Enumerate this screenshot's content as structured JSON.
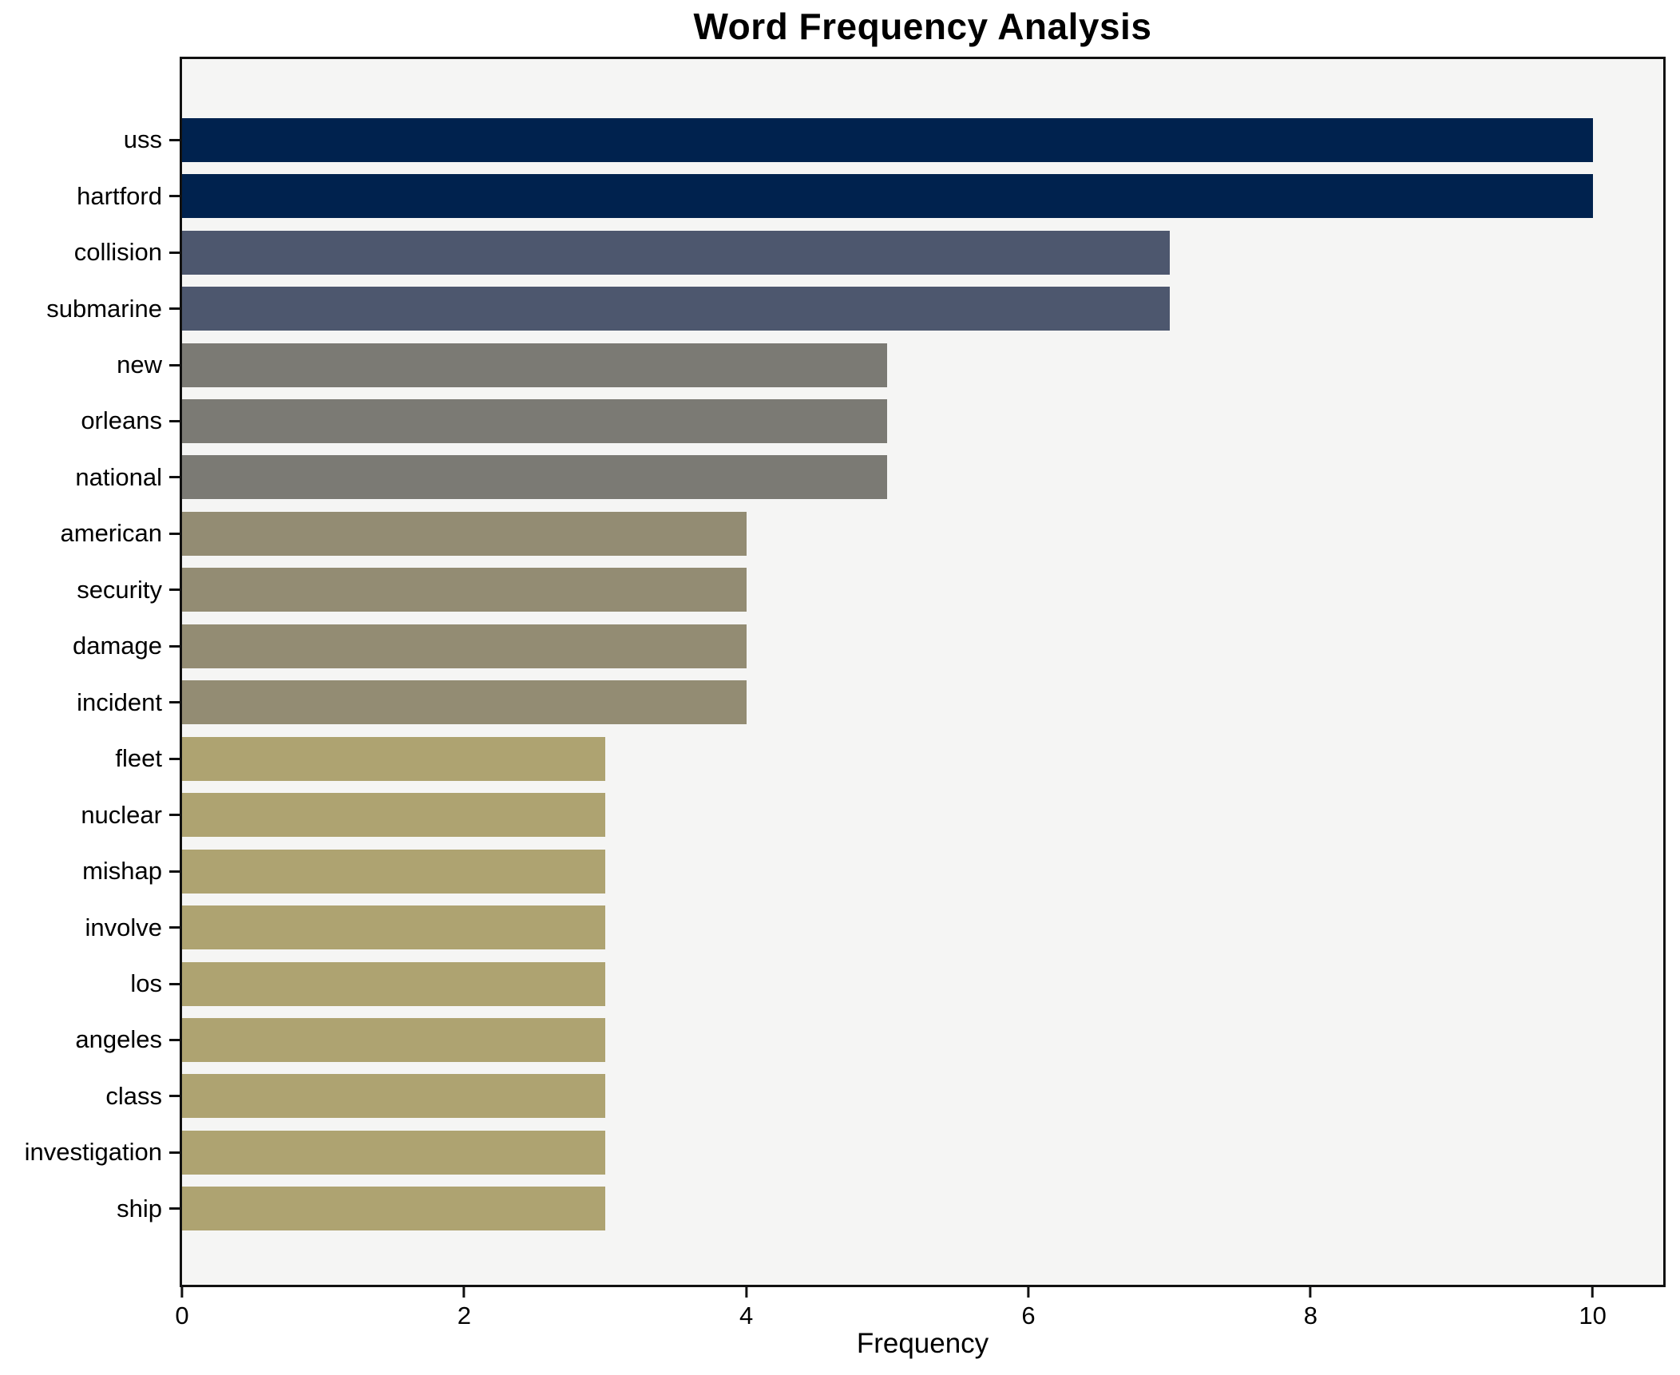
{
  "chart_data": {
    "type": "bar",
    "orientation": "horizontal",
    "title": "Word Frequency Analysis",
    "xlabel": "Frequency",
    "ylabel": "",
    "categories": [
      "uss",
      "hartford",
      "collision",
      "submarine",
      "new",
      "orleans",
      "national",
      "american",
      "security",
      "damage",
      "incident",
      "fleet",
      "nuclear",
      "mishap",
      "involve",
      "los",
      "angeles",
      "class",
      "investigation",
      "ship"
    ],
    "values": [
      10,
      10,
      7,
      7,
      5,
      5,
      5,
      4,
      4,
      4,
      4,
      3,
      3,
      3,
      3,
      3,
      3,
      3,
      3,
      3
    ],
    "bar_colors": [
      "#00224e",
      "#00224e",
      "#4d576e",
      "#4d576e",
      "#7b7a74",
      "#7b7a74",
      "#7b7a74",
      "#938c73",
      "#938c73",
      "#938c73",
      "#938c73",
      "#aea371",
      "#aea371",
      "#aea371",
      "#aea371",
      "#aea371",
      "#aea371",
      "#aea371",
      "#aea371",
      "#aea371"
    ],
    "xlim": [
      0,
      10.5
    ],
    "x_ticks": [
      0,
      2,
      4,
      6,
      8,
      10
    ],
    "grid": false,
    "legend": "none",
    "plot_background": "#f5f5f4",
    "figure_background": "#ffffff",
    "spine_color": "#111111",
    "text_color": "#000000"
  }
}
